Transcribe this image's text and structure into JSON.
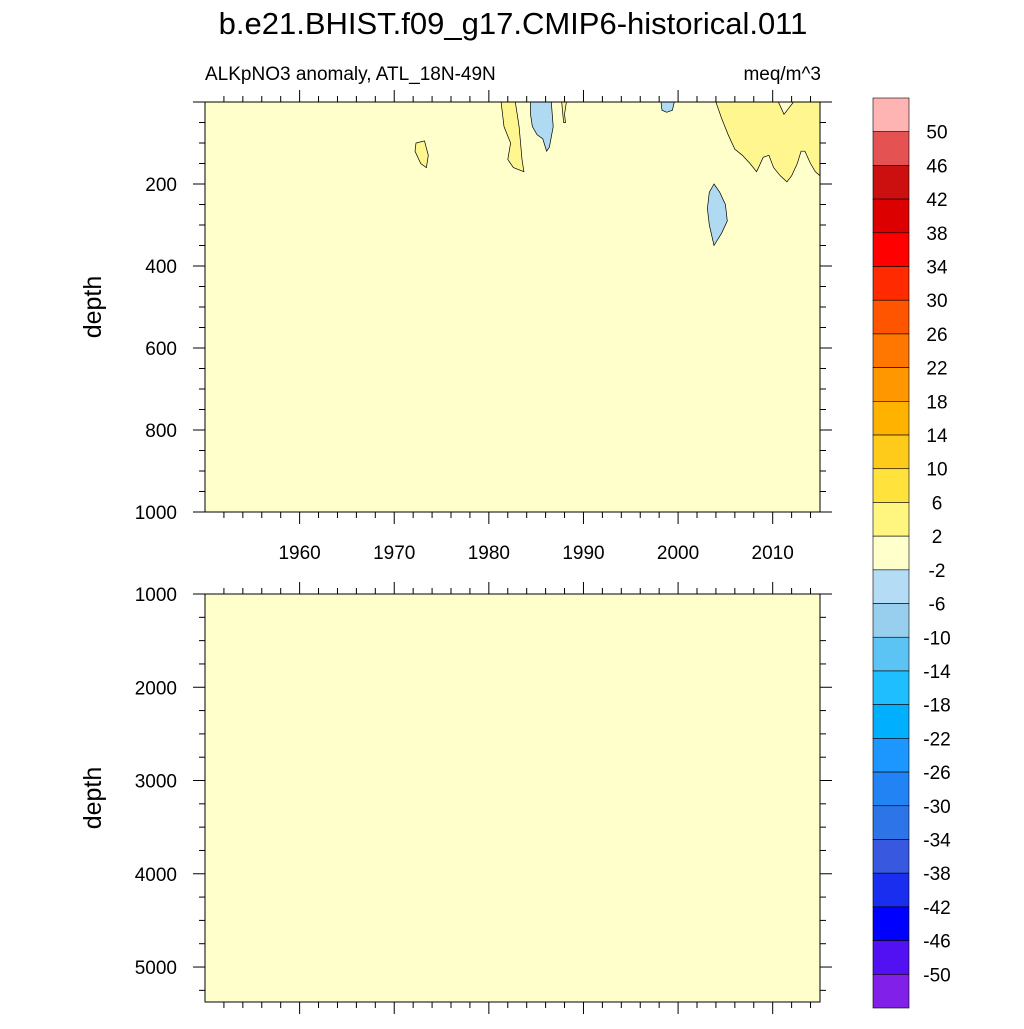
{
  "title": "b.e21.BHIST.f09_g17.CMIP6-historical.011",
  "subtitle_left": "ALKpNO3 anomaly, ATL_18N-49N",
  "subtitle_right": "meq/m^3",
  "colors": {
    "background_field": "#ffffcc",
    "contour_line": "#000000",
    "positive_patch": "#fff68f",
    "negative_patch": "#b0daf2"
  },
  "chart_data": [
    {
      "type": "heatmap",
      "panel": "upper",
      "ylabel": "depth",
      "xlabel": "",
      "xlim": [
        1950,
        2015
      ],
      "ylim": [
        0,
        1000
      ],
      "y_reversed": true,
      "xticks": [
        1960,
        1970,
        1980,
        1990,
        2000,
        2010
      ],
      "yticks": [
        200,
        400,
        600,
        800,
        1000
      ],
      "background_value_band": "-2 to 2",
      "features": [
        {
          "sign": "positive",
          "band": "2 to 6",
          "polygon": [
            [
              1972.3,
              100
            ],
            [
              1973.2,
              95
            ],
            [
              1973.6,
              130
            ],
            [
              1973.4,
              160
            ],
            [
              1972.8,
              150
            ],
            [
              1972.2,
              120
            ]
          ]
        },
        {
          "sign": "positive",
          "band": "2 to 6",
          "polygon": [
            [
              1981.3,
              0
            ],
            [
              1982.8,
              0
            ],
            [
              1983.2,
              60
            ],
            [
              1983.5,
              140
            ],
            [
              1983.7,
              170
            ],
            [
              1982.6,
              160
            ],
            [
              1982.0,
              140
            ],
            [
              1982.3,
              100
            ],
            [
              1981.6,
              60
            ]
          ]
        },
        {
          "sign": "negative",
          "band": "-6 to -2",
          "polygon": [
            [
              1984.4,
              0
            ],
            [
              1986.6,
              0
            ],
            [
              1986.8,
              60
            ],
            [
              1986.4,
              110
            ],
            [
              1986.1,
              120
            ],
            [
              1985.7,
              90
            ],
            [
              1985.1,
              80
            ],
            [
              1984.6,
              60
            ],
            [
              1984.4,
              30
            ]
          ]
        },
        {
          "sign": "positive",
          "band": "2 to 6",
          "polygon": [
            [
              1987.7,
              0
            ],
            [
              1988.2,
              0
            ],
            [
              1988.0,
              30
            ],
            [
              1988.1,
              50
            ],
            [
              1987.9,
              50
            ]
          ]
        },
        {
          "sign": "negative",
          "band": "-6 to -2",
          "polygon": [
            [
              1998.2,
              0
            ],
            [
              1999.6,
              0
            ],
            [
              1999.4,
              20
            ],
            [
              1998.8,
              25
            ],
            [
              1998.3,
              20
            ]
          ]
        },
        {
          "sign": "negative",
          "band": "-6 to -2",
          "polygon": [
            [
              2003.8,
              200
            ],
            [
              2004.4,
              220
            ],
            [
              2005.0,
              250
            ],
            [
              2005.2,
              290
            ],
            [
              2004.6,
              320
            ],
            [
              2003.8,
              350
            ],
            [
              2003.3,
              300
            ],
            [
              2003.1,
              260
            ],
            [
              2003.3,
              220
            ]
          ]
        },
        {
          "sign": "positive",
          "band": "2 to 6",
          "polygon": [
            [
              2004.0,
              0
            ],
            [
              2010.6,
              0
            ],
            [
              2011.2,
              30
            ],
            [
              2011.7,
              15
            ],
            [
              2012.2,
              0
            ],
            [
              2015.0,
              0
            ],
            [
              2015.0,
              180
            ],
            [
              2014.5,
              170
            ],
            [
              2014.0,
              150
            ],
            [
              2013.4,
              120
            ],
            [
              2013.0,
              120
            ],
            [
              2012.6,
              150
            ],
            [
              2012.0,
              180
            ],
            [
              2011.5,
              195
            ],
            [
              2010.8,
              180
            ],
            [
              2010.1,
              160
            ],
            [
              2009.6,
              130
            ],
            [
              2009.0,
              135
            ],
            [
              2008.3,
              170
            ],
            [
              2007.6,
              150
            ],
            [
              2006.8,
              130
            ],
            [
              2006.0,
              115
            ],
            [
              2005.3,
              80
            ],
            [
              2004.6,
              40
            ]
          ]
        }
      ]
    },
    {
      "type": "heatmap",
      "panel": "lower",
      "ylabel": "depth",
      "xlabel": "",
      "xlim": [
        1950,
        2015
      ],
      "ylim": [
        1000,
        5375
      ],
      "y_reversed": true,
      "xticks": [
        1960,
        1970,
        1980,
        1990,
        2000,
        2010
      ],
      "yticks": [
        1000,
        2000,
        3000,
        4000,
        5000
      ],
      "background_value_band": "-2 to 2",
      "features": []
    }
  ],
  "colorbar": {
    "labels": [
      50,
      46,
      42,
      38,
      34,
      30,
      26,
      22,
      18,
      14,
      10,
      6,
      2,
      -2,
      -6,
      -10,
      -14,
      -18,
      -22,
      -26,
      -30,
      -34,
      -38,
      -42,
      -46,
      -50
    ],
    "colors": [
      "#ffb4b4",
      "#e45252",
      "#cc1010",
      "#dd0000",
      "#ff0000",
      "#ff2a00",
      "#ff5500",
      "#ff7700",
      "#ff9700",
      "#ffb300",
      "#ffcb1a",
      "#ffe23c",
      "#fff680",
      "#ffffcc",
      "#b4dcf4",
      "#98cfee",
      "#5cc4f4",
      "#1ebeff",
      "#00b0ff",
      "#1c97ff",
      "#2283f4",
      "#2c74e8",
      "#3858df",
      "#1a2ef0",
      "#0000ff",
      "#5211f2",
      "#8020e8"
    ]
  }
}
